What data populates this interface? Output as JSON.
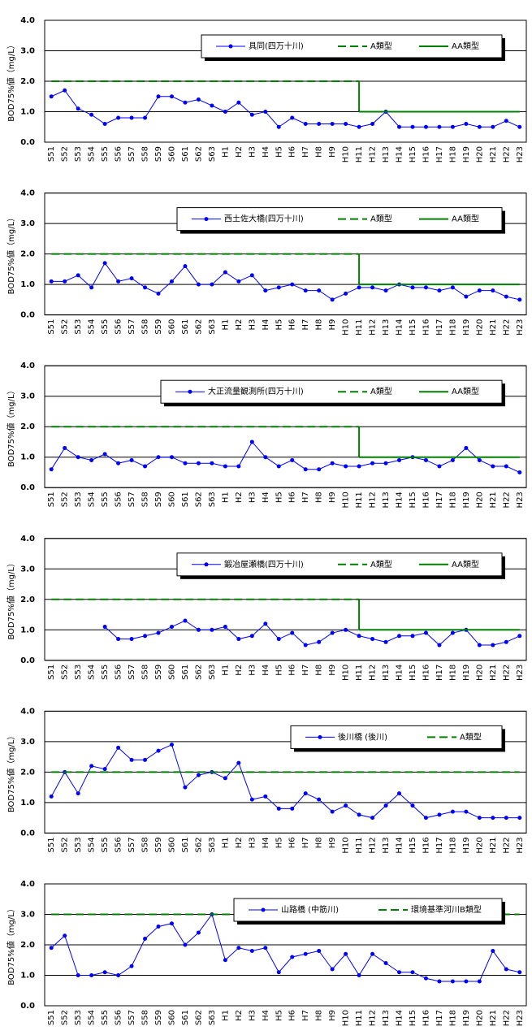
{
  "chart_data": [
    {
      "type": "line",
      "y_label": "BOD75%値（mg/L）",
      "categories": [
        "S51",
        "S52",
        "S53",
        "S54",
        "S55",
        "S56",
        "S57",
        "S58",
        "S59",
        "S60",
        "S61",
        "S62",
        "S63",
        "H1",
        "H2",
        "H3",
        "H4",
        "H5",
        "H6",
        "H7",
        "H8",
        "H9",
        "H10",
        "H11",
        "H12",
        "H13",
        "H14",
        "H15",
        "H16",
        "H17",
        "H18",
        "H19",
        "H20",
        "H21",
        "H22",
        "H23"
      ],
      "ylim": [
        0,
        4
      ],
      "yticks": [
        {
          "value": 0,
          "label": "0.0"
        },
        {
          "value": 1,
          "label": "1.0"
        },
        {
          "value": 2,
          "label": "2.0"
        },
        {
          "value": 3,
          "label": "3.0"
        },
        {
          "value": 4,
          "label": "4.0"
        }
      ],
      "grid": true,
      "series": [
        {
          "name": "具同(四万十川)",
          "color": "#0000ff",
          "style": "marker",
          "values": [
            1.5,
            1.7,
            1.1,
            0.9,
            0.6,
            0.8,
            0.8,
            0.8,
            1.5,
            1.5,
            1.3,
            1.4,
            1.2,
            1.0,
            1.3,
            0.9,
            1.0,
            0.5,
            0.8,
            0.6,
            0.6,
            0.6,
            0.6,
            0.5,
            0.6,
            1.0,
            0.5,
            0.5,
            0.5,
            0.5,
            0.5,
            0.6,
            0.5,
            0.5,
            0.7,
            0.5
          ]
        },
        {
          "name": "A類型",
          "color": "#008000",
          "style": "dashed",
          "values": [
            2,
            2,
            2,
            2,
            2,
            2,
            2,
            2,
            2,
            2,
            2,
            2,
            2,
            2,
            2,
            2,
            2,
            2,
            2,
            2,
            2,
            2,
            2,
            2,
            null,
            null,
            null,
            null,
            null,
            null,
            null,
            null,
            null,
            null,
            null,
            null
          ]
        },
        {
          "name": "AA類型",
          "color": "#008000",
          "style": "solid",
          "values": [
            null,
            null,
            null,
            null,
            null,
            null,
            null,
            null,
            null,
            null,
            null,
            null,
            null,
            null,
            null,
            null,
            null,
            null,
            null,
            null,
            null,
            null,
            null,
            1,
            1,
            1,
            1,
            1,
            1,
            1,
            1,
            1,
            1,
            1,
            1,
            1
          ]
        }
      ]
    },
    {
      "type": "line",
      "y_label": "BOD75%値（mg/L）",
      "categories": [
        "S51",
        "S52",
        "S53",
        "S54",
        "S55",
        "S56",
        "S57",
        "S58",
        "S59",
        "S60",
        "S61",
        "S62",
        "S63",
        "H1",
        "H2",
        "H3",
        "H4",
        "H5",
        "H6",
        "H7",
        "H8",
        "H9",
        "H10",
        "H11",
        "H12",
        "H13",
        "H14",
        "H15",
        "H16",
        "H17",
        "H18",
        "H19",
        "H20",
        "H21",
        "H22",
        "H23"
      ],
      "ylim": [
        0,
        4
      ],
      "yticks": [
        {
          "value": 0,
          "label": "0.0"
        },
        {
          "value": 1,
          "label": "1.0"
        },
        {
          "value": 2,
          "label": "2.0"
        },
        {
          "value": 3,
          "label": "3.0"
        },
        {
          "value": 4,
          "label": "4.0"
        }
      ],
      "grid": true,
      "series": [
        {
          "name": "西土佐大橋(四万十川)",
          "color": "#0000ff",
          "style": "marker",
          "values": [
            1.1,
            1.1,
            1.3,
            0.9,
            1.7,
            1.1,
            1.2,
            0.9,
            0.7,
            1.1,
            1.6,
            1.0,
            1.0,
            1.4,
            1.1,
            1.3,
            0.8,
            0.9,
            1.0,
            0.8,
            0.8,
            0.5,
            0.7,
            0.9,
            0.9,
            0.8,
            1.0,
            0.9,
            0.9,
            0.8,
            0.9,
            0.6,
            0.8,
            0.8,
            0.6,
            0.5
          ]
        },
        {
          "name": "A類型",
          "color": "#008000",
          "style": "dashed",
          "values": [
            2,
            2,
            2,
            2,
            2,
            2,
            2,
            2,
            2,
            2,
            2,
            2,
            2,
            2,
            2,
            2,
            2,
            2,
            2,
            2,
            2,
            2,
            2,
            2,
            null,
            null,
            null,
            null,
            null,
            null,
            null,
            null,
            null,
            null,
            null,
            null
          ]
        },
        {
          "name": "AA類型",
          "color": "#008000",
          "style": "solid",
          "values": [
            null,
            null,
            null,
            null,
            null,
            null,
            null,
            null,
            null,
            null,
            null,
            null,
            null,
            null,
            null,
            null,
            null,
            null,
            null,
            null,
            null,
            null,
            null,
            1,
            1,
            1,
            1,
            1,
            1,
            1,
            1,
            1,
            1,
            1,
            1,
            1
          ]
        }
      ]
    },
    {
      "type": "line",
      "y_label": "BOD75%値（mg/L）",
      "categories": [
        "S51",
        "S52",
        "S53",
        "S54",
        "S55",
        "S56",
        "S57",
        "S58",
        "S59",
        "S60",
        "S61",
        "S62",
        "S63",
        "H1",
        "H2",
        "H3",
        "H4",
        "H5",
        "H6",
        "H7",
        "H8",
        "H9",
        "H10",
        "H11",
        "H12",
        "H13",
        "H14",
        "H15",
        "H16",
        "H17",
        "H18",
        "H19",
        "H20",
        "H21",
        "H22",
        "H23"
      ],
      "ylim": [
        0,
        4
      ],
      "yticks": [
        {
          "value": 0,
          "label": "0.0"
        },
        {
          "value": 1,
          "label": "1.0"
        },
        {
          "value": 2,
          "label": "2.0"
        },
        {
          "value": 3,
          "label": "3.0"
        },
        {
          "value": 4,
          "label": "4.0"
        }
      ],
      "grid": true,
      "series": [
        {
          "name": "大正流量観測所(四万十川)",
          "color": "#0000ff",
          "style": "marker",
          "values": [
            0.6,
            1.3,
            1.0,
            0.9,
            1.1,
            0.8,
            0.9,
            0.7,
            1.0,
            1.0,
            0.8,
            0.8,
            0.8,
            0.7,
            0.7,
            1.5,
            1.0,
            0.7,
            0.9,
            0.6,
            0.6,
            0.8,
            0.7,
            0.7,
            0.8,
            0.8,
            0.9,
            1.0,
            0.9,
            0.7,
            0.9,
            1.3,
            0.9,
            0.7,
            0.7,
            0.5
          ]
        },
        {
          "name": "A類型",
          "color": "#008000",
          "style": "dashed",
          "values": [
            2,
            2,
            2,
            2,
            2,
            2,
            2,
            2,
            2,
            2,
            2,
            2,
            2,
            2,
            2,
            2,
            2,
            2,
            2,
            2,
            2,
            2,
            2,
            2,
            null,
            null,
            null,
            null,
            null,
            null,
            null,
            null,
            null,
            null,
            null,
            null
          ]
        },
        {
          "name": "AA類型",
          "color": "#008000",
          "style": "solid",
          "values": [
            null,
            null,
            null,
            null,
            null,
            null,
            null,
            null,
            null,
            null,
            null,
            null,
            null,
            null,
            null,
            null,
            null,
            null,
            null,
            null,
            null,
            null,
            null,
            1,
            1,
            1,
            1,
            1,
            1,
            1,
            1,
            1,
            1,
            1,
            1,
            1
          ]
        }
      ]
    },
    {
      "type": "line",
      "y_label": "BOD75%値（mg/L）",
      "categories": [
        "S51",
        "S52",
        "S53",
        "S54",
        "S55",
        "S56",
        "S57",
        "S58",
        "S59",
        "S60",
        "S61",
        "S62",
        "S63",
        "H1",
        "H2",
        "H3",
        "H4",
        "H5",
        "H6",
        "H7",
        "H8",
        "H9",
        "H10",
        "H11",
        "H12",
        "H13",
        "H14",
        "H15",
        "H16",
        "H17",
        "H18",
        "H19",
        "H20",
        "H21",
        "H22",
        "H23"
      ],
      "ylim": [
        0,
        4
      ],
      "yticks": [
        {
          "value": 0,
          "label": "0.0"
        },
        {
          "value": 1,
          "label": "1.0"
        },
        {
          "value": 2,
          "label": "2.0"
        },
        {
          "value": 3,
          "label": "3.0"
        },
        {
          "value": 4,
          "label": "4.0"
        }
      ],
      "grid": true,
      "series": [
        {
          "name": "鍛冶屋瀬橋(四万十川)",
          "color": "#0000ff",
          "style": "marker",
          "values": [
            null,
            null,
            null,
            null,
            1.1,
            0.7,
            0.7,
            0.8,
            0.9,
            1.1,
            1.3,
            1.0,
            1.0,
            1.1,
            0.7,
            0.8,
            1.2,
            0.7,
            0.9,
            0.5,
            0.6,
            0.9,
            1.0,
            0.8,
            0.7,
            0.6,
            0.8,
            0.8,
            0.9,
            0.5,
            0.9,
            1.0,
            0.5,
            0.5,
            0.6,
            0.8
          ]
        },
        {
          "name": "A類型",
          "color": "#008000",
          "style": "dashed",
          "values": [
            2,
            2,
            2,
            2,
            2,
            2,
            2,
            2,
            2,
            2,
            2,
            2,
            2,
            2,
            2,
            2,
            2,
            2,
            2,
            2,
            2,
            2,
            2,
            2,
            null,
            null,
            null,
            null,
            null,
            null,
            null,
            null,
            null,
            null,
            null,
            null
          ]
        },
        {
          "name": "AA類型",
          "color": "#008000",
          "style": "solid",
          "values": [
            null,
            null,
            null,
            null,
            null,
            null,
            null,
            null,
            null,
            null,
            null,
            null,
            null,
            null,
            null,
            null,
            null,
            null,
            null,
            null,
            null,
            null,
            null,
            1,
            1,
            1,
            1,
            1,
            1,
            1,
            1,
            1,
            1,
            1,
            1,
            1
          ]
        }
      ]
    },
    {
      "type": "line",
      "y_label": "BOD75%値（mg/L）",
      "categories": [
        "S51",
        "S52",
        "S53",
        "S54",
        "S55",
        "S56",
        "S57",
        "S58",
        "S59",
        "S60",
        "S61",
        "S62",
        "S63",
        "H1",
        "H2",
        "H3",
        "H4",
        "H5",
        "H6",
        "H7",
        "H8",
        "H9",
        "H10",
        "H11",
        "H12",
        "H13",
        "H14",
        "H15",
        "H16",
        "H17",
        "H18",
        "H19",
        "H20",
        "H21",
        "H22",
        "H23"
      ],
      "ylim": [
        0,
        4
      ],
      "yticks": [
        {
          "value": 0,
          "label": "0.0"
        },
        {
          "value": 1,
          "label": "1.0"
        },
        {
          "value": 2,
          "label": "2.0"
        },
        {
          "value": 3,
          "label": "3.0"
        },
        {
          "value": 4,
          "label": "4.0"
        }
      ],
      "grid": true,
      "series": [
        {
          "name": "後川橋 (後川)",
          "color": "#0000ff",
          "style": "marker",
          "values": [
            1.2,
            2.0,
            1.3,
            2.2,
            2.1,
            2.8,
            2.4,
            2.4,
            2.7,
            2.9,
            1.5,
            1.9,
            2.0,
            1.8,
            2.3,
            1.1,
            1.2,
            0.8,
            0.8,
            1.3,
            1.1,
            0.7,
            0.9,
            0.6,
            0.5,
            0.9,
            1.3,
            0.9,
            0.5,
            0.6,
            0.7,
            0.7,
            0.5,
            0.5,
            0.5,
            0.5
          ]
        },
        {
          "name": "A類型",
          "color": "#008000",
          "style": "dashed",
          "values": [
            2,
            2,
            2,
            2,
            2,
            2,
            2,
            2,
            2,
            2,
            2,
            2,
            2,
            2,
            2,
            2,
            2,
            2,
            2,
            2,
            2,
            2,
            2,
            2,
            2,
            2,
            2,
            2,
            2,
            2,
            2,
            2,
            2,
            2,
            2,
            2
          ]
        }
      ]
    },
    {
      "type": "line",
      "y_label": "BOD75%値（mg/L）",
      "categories": [
        "S51",
        "S52",
        "S53",
        "S54",
        "S55",
        "S56",
        "S57",
        "S58",
        "S59",
        "S60",
        "S61",
        "S62",
        "S63",
        "H1",
        "H2",
        "H3",
        "H4",
        "H5",
        "H6",
        "H7",
        "H8",
        "H9",
        "H10",
        "H11",
        "H12",
        "H13",
        "H14",
        "H15",
        "H16",
        "H17",
        "H18",
        "H19",
        "H20",
        "H21",
        "H22",
        "H23"
      ],
      "ylim": [
        0,
        4
      ],
      "yticks": [
        {
          "value": 0,
          "label": "0.0"
        },
        {
          "value": 1,
          "label": "1.0"
        },
        {
          "value": 2,
          "label": "2.0"
        },
        {
          "value": 3,
          "label": "3.0"
        },
        {
          "value": 4,
          "label": "4.0"
        }
      ],
      "grid": true,
      "series": [
        {
          "name": "山路橋 (中筋川)",
          "color": "#0000ff",
          "style": "marker",
          "values": [
            1.9,
            2.3,
            1.0,
            1.0,
            1.1,
            1.0,
            1.3,
            2.2,
            2.6,
            2.7,
            2.0,
            2.4,
            3.0,
            1.5,
            1.9,
            1.8,
            1.9,
            1.1,
            1.6,
            1.7,
            1.8,
            1.2,
            1.7,
            1.0,
            1.7,
            1.4,
            1.1,
            1.1,
            0.9,
            0.8,
            0.8,
            0.8,
            0.8,
            1.8,
            1.2,
            1.1
          ]
        },
        {
          "name": "環境基準河川B類型",
          "color": "#008000",
          "style": "dashed",
          "values": [
            3,
            3,
            3,
            3,
            3,
            3,
            3,
            3,
            3,
            3,
            3,
            3,
            3,
            3,
            3,
            3,
            3,
            3,
            3,
            3,
            3,
            3,
            3,
            3,
            3,
            3,
            3,
            3,
            3,
            3,
            3,
            3,
            3,
            3,
            3,
            3
          ]
        }
      ]
    }
  ]
}
